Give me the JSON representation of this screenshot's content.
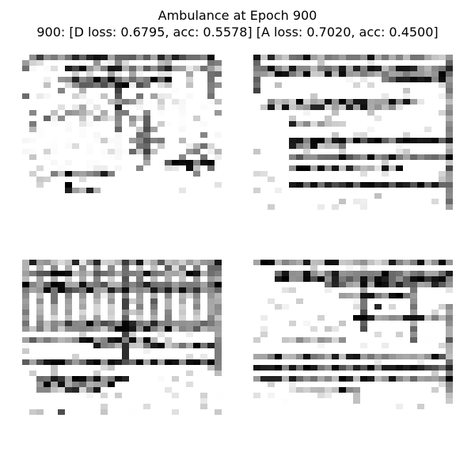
{
  "figure": {
    "title_line_1": "Ambulance at Epoch 900",
    "title_line_2": "900: [D loss: 0.6795, acc: 0.5578]  [A loss: 0.7020, acc: 0.4500]"
  },
  "colors": {
    "background": "#ffffff",
    "text": "#000000",
    "pixel_dark": "#000000",
    "pixel_light": "#ffffff"
  },
  "images": {
    "grid_size": 28,
    "colormap": "gray_r",
    "count": 4
  }
}
